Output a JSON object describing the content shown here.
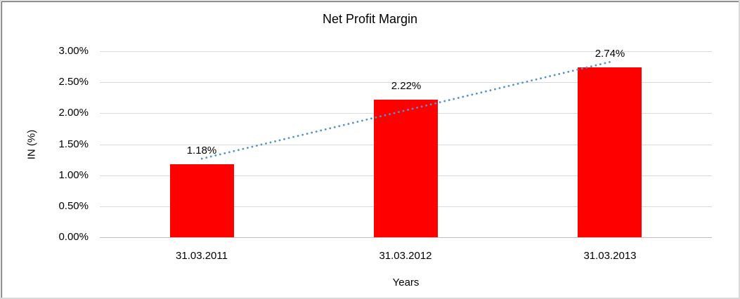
{
  "chart_data": {
    "type": "bar",
    "title": "Net Profit Margin",
    "categories": [
      "31.03.2011",
      "31.03.2012",
      "31.03.2013"
    ],
    "values": [
      1.18,
      2.22,
      2.74
    ],
    "data_labels": [
      "1.18%",
      "2.22%",
      "2.74%"
    ],
    "xlabel": "Years",
    "ylabel": "IN (%)",
    "ylim": [
      0,
      3.0
    ],
    "ytick_step": 0.5,
    "ytick_labels": [
      "0.00%",
      "0.50%",
      "1.00%",
      "1.50%",
      "2.00%",
      "2.50%",
      "3.00%"
    ],
    "grid": true,
    "legend": "none",
    "trendline": {
      "type": "linear",
      "style": "dotted"
    },
    "colors": {
      "bar": "#FF0000",
      "trendline": "#5593D0",
      "gridline": "#D9D9D9",
      "axis_line": "#BFBFBF",
      "text": "#000000",
      "frame_light": "#D9D9D9",
      "frame_dark": "#595959"
    }
  }
}
